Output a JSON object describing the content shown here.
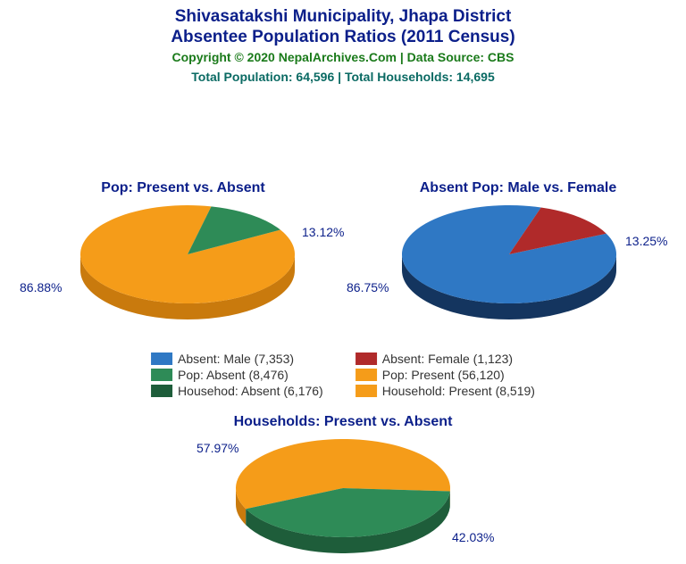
{
  "title_line1": "Shivasatakshi Municipality, Jhapa District",
  "title_line2": "Absentee Population Ratios (2011 Census)",
  "title_color": "#0b1f8a",
  "title_fontsize": 19,
  "copyright": "Copyright © 2020 NepalArchives.Com | Data Source: CBS",
  "copyright_color": "#1a7a1a",
  "copyright_fontsize": 14,
  "totals": "Total Population: 64,596 | Total Households: 14,695",
  "totals_color": "#0a6a63",
  "totals_fontsize": 14,
  "label_fontsize": 14,
  "label_color": "#0b1f8a",
  "chart_title_fontsize": 16,
  "chart_title_color": "#0b1f8a",
  "legend_fontsize": 14,
  "legend_color": "#333333",
  "chart1": {
    "title": "Pop: Present vs. Absent",
    "slices": [
      {
        "pct": 86.88,
        "label": "86.88%",
        "fill": "#f59c19",
        "side": "#c97a0d"
      },
      {
        "pct": 13.12,
        "label": "13.12%",
        "fill": "#2e8b57",
        "side": "#1e5d3a"
      }
    ]
  },
  "chart2": {
    "title": "Absent Pop: Male vs. Female",
    "slices": [
      {
        "pct": 86.75,
        "label": "86.75%",
        "fill": "#2f78c4",
        "side": "#14355f"
      },
      {
        "pct": 13.25,
        "label": "13.25%",
        "fill": "#b02a2a",
        "side": "#6e1717"
      }
    ]
  },
  "chart3": {
    "title": "Households: Present vs. Absent",
    "slices": [
      {
        "pct": 57.97,
        "label": "57.97%",
        "fill": "#f59c19",
        "side": "#c97a0d"
      },
      {
        "pct": 42.03,
        "label": "42.03%",
        "fill": "#2e8b57",
        "side": "#1e5d3a"
      }
    ]
  },
  "legend": [
    {
      "color": "#2f78c4",
      "label": "Absent: Male (7,353)"
    },
    {
      "color": "#b02a2a",
      "label": "Absent: Female (1,123)"
    },
    {
      "color": "#2e8b57",
      "label": "Pop: Absent (8,476)"
    },
    {
      "color": "#f59c19",
      "label": "Pop: Present (56,120)"
    },
    {
      "color": "#1e5d3a",
      "label": "Househod: Absent (6,176)"
    },
    {
      "color": "#f59c19",
      "label": "Household: Present (8,519)"
    }
  ]
}
